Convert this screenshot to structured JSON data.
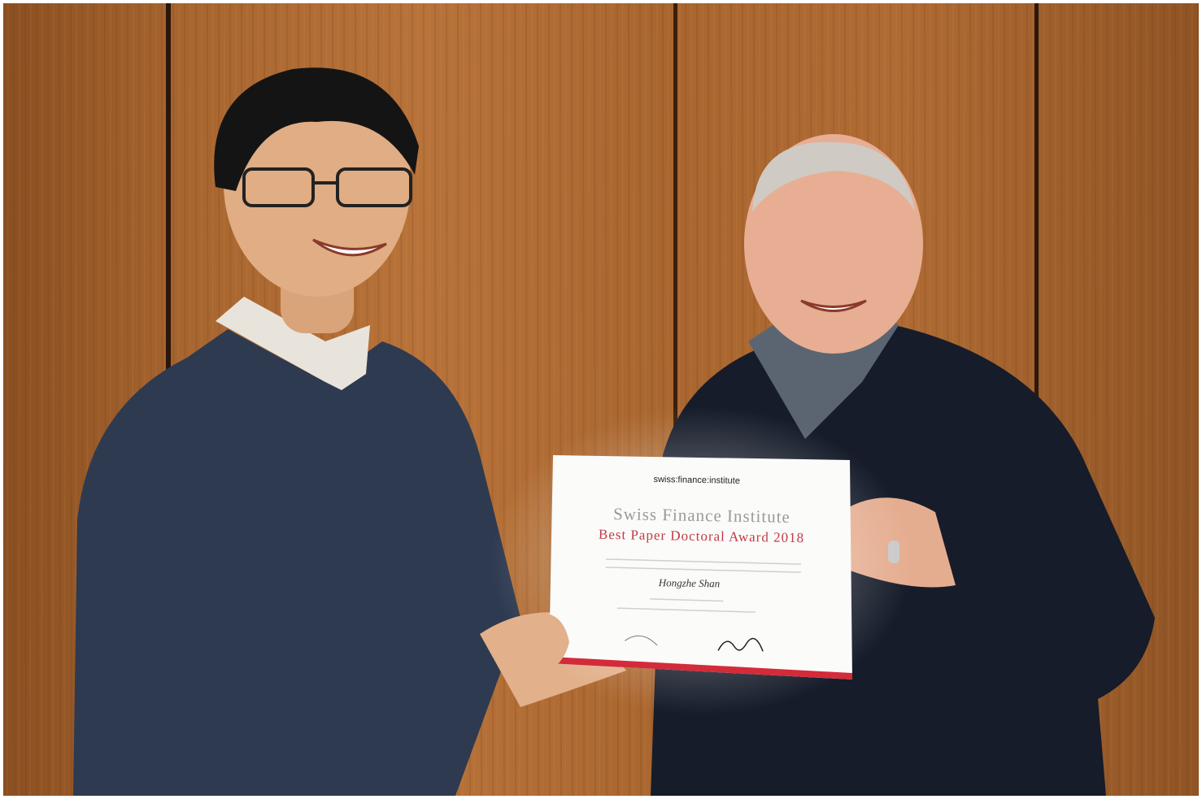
{
  "certificate": {
    "logo": "swiss:finance:institute",
    "institute": "Swiss Finance Institute",
    "award": "Best Paper Doctoral Award 2018",
    "recipient": "Hongzhe Shan"
  }
}
